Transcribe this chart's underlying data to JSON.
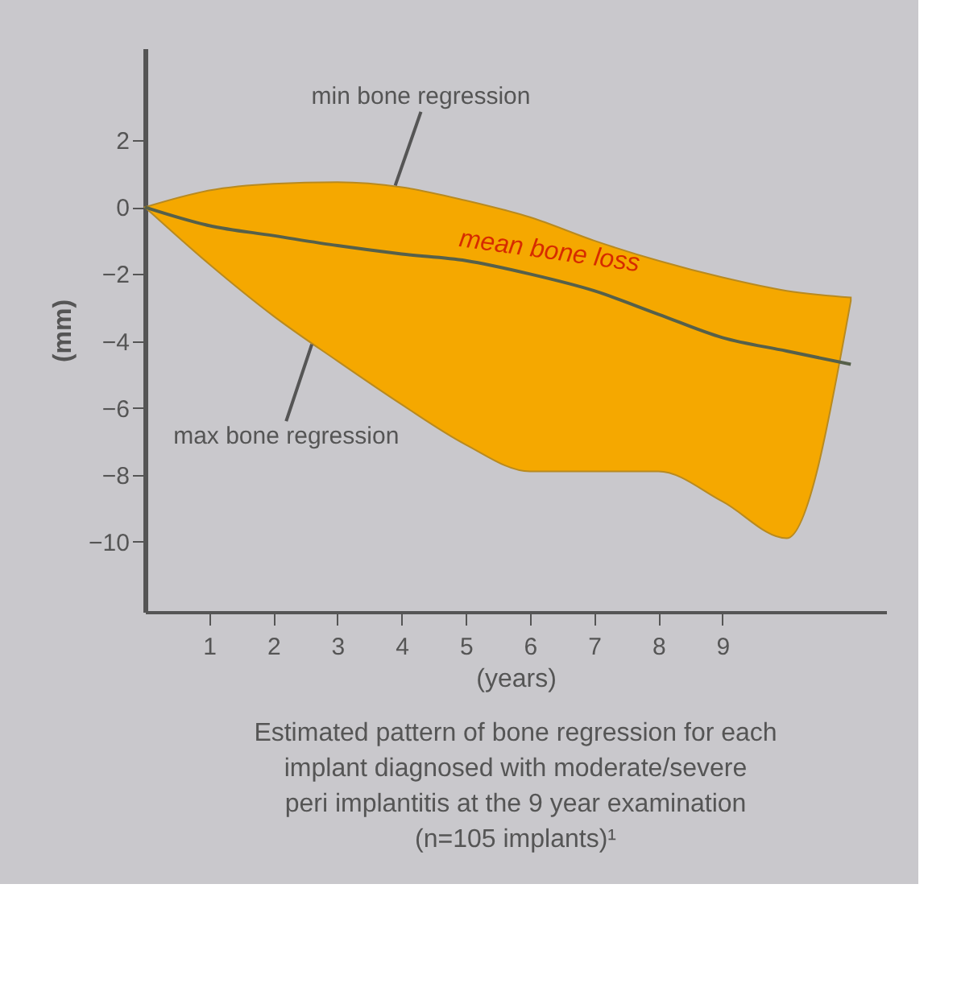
{
  "chart_data": {
    "type": "line",
    "xlabel": "(years)",
    "ylabel": "(mm)",
    "x": [
      0,
      1,
      2,
      3,
      4,
      5,
      6,
      7,
      8,
      9,
      10,
      11
    ],
    "series": [
      {
        "name": "mean bone loss",
        "color": "#56604a",
        "values": [
          0,
          -0.55,
          -0.85,
          -1.15,
          -1.4,
          -1.6,
          -2.0,
          -2.5,
          -3.2,
          -3.9,
          -4.3,
          -4.7
        ],
        "upper": [
          0,
          0.5,
          0.7,
          0.75,
          0.6,
          0.2,
          -0.3,
          -1.0,
          -1.6,
          -2.1,
          -2.5,
          -2.7
        ],
        "lower": [
          0,
          -1.7,
          -3.25,
          -4.6,
          -5.9,
          -7.1,
          -7.9,
          -7.9,
          -7.9,
          -8.8,
          -9.9,
          -2.8
        ]
      }
    ],
    "annotations": [
      {
        "text": "min bone regression",
        "x": 3.9,
        "y": 0.65
      },
      {
        "text": "max bone regression",
        "x": 2.6,
        "y": -4.1
      },
      "Estimated pattern of bone regression for each",
      "implant diagnosed with moderate/severe",
      "peri implantitis at the 9 year examination",
      "(n=105 implants)¹"
    ],
    "xlim": [
      0,
      11.55
    ],
    "ylim": [
      -12.1,
      4.75
    ],
    "xticks": [
      1,
      2,
      3,
      4,
      5,
      6,
      7,
      8,
      9
    ],
    "yticks": [
      2,
      0,
      -2,
      -4,
      -6,
      -8,
      -10
    ],
    "grid": false,
    "legend": false
  }
}
